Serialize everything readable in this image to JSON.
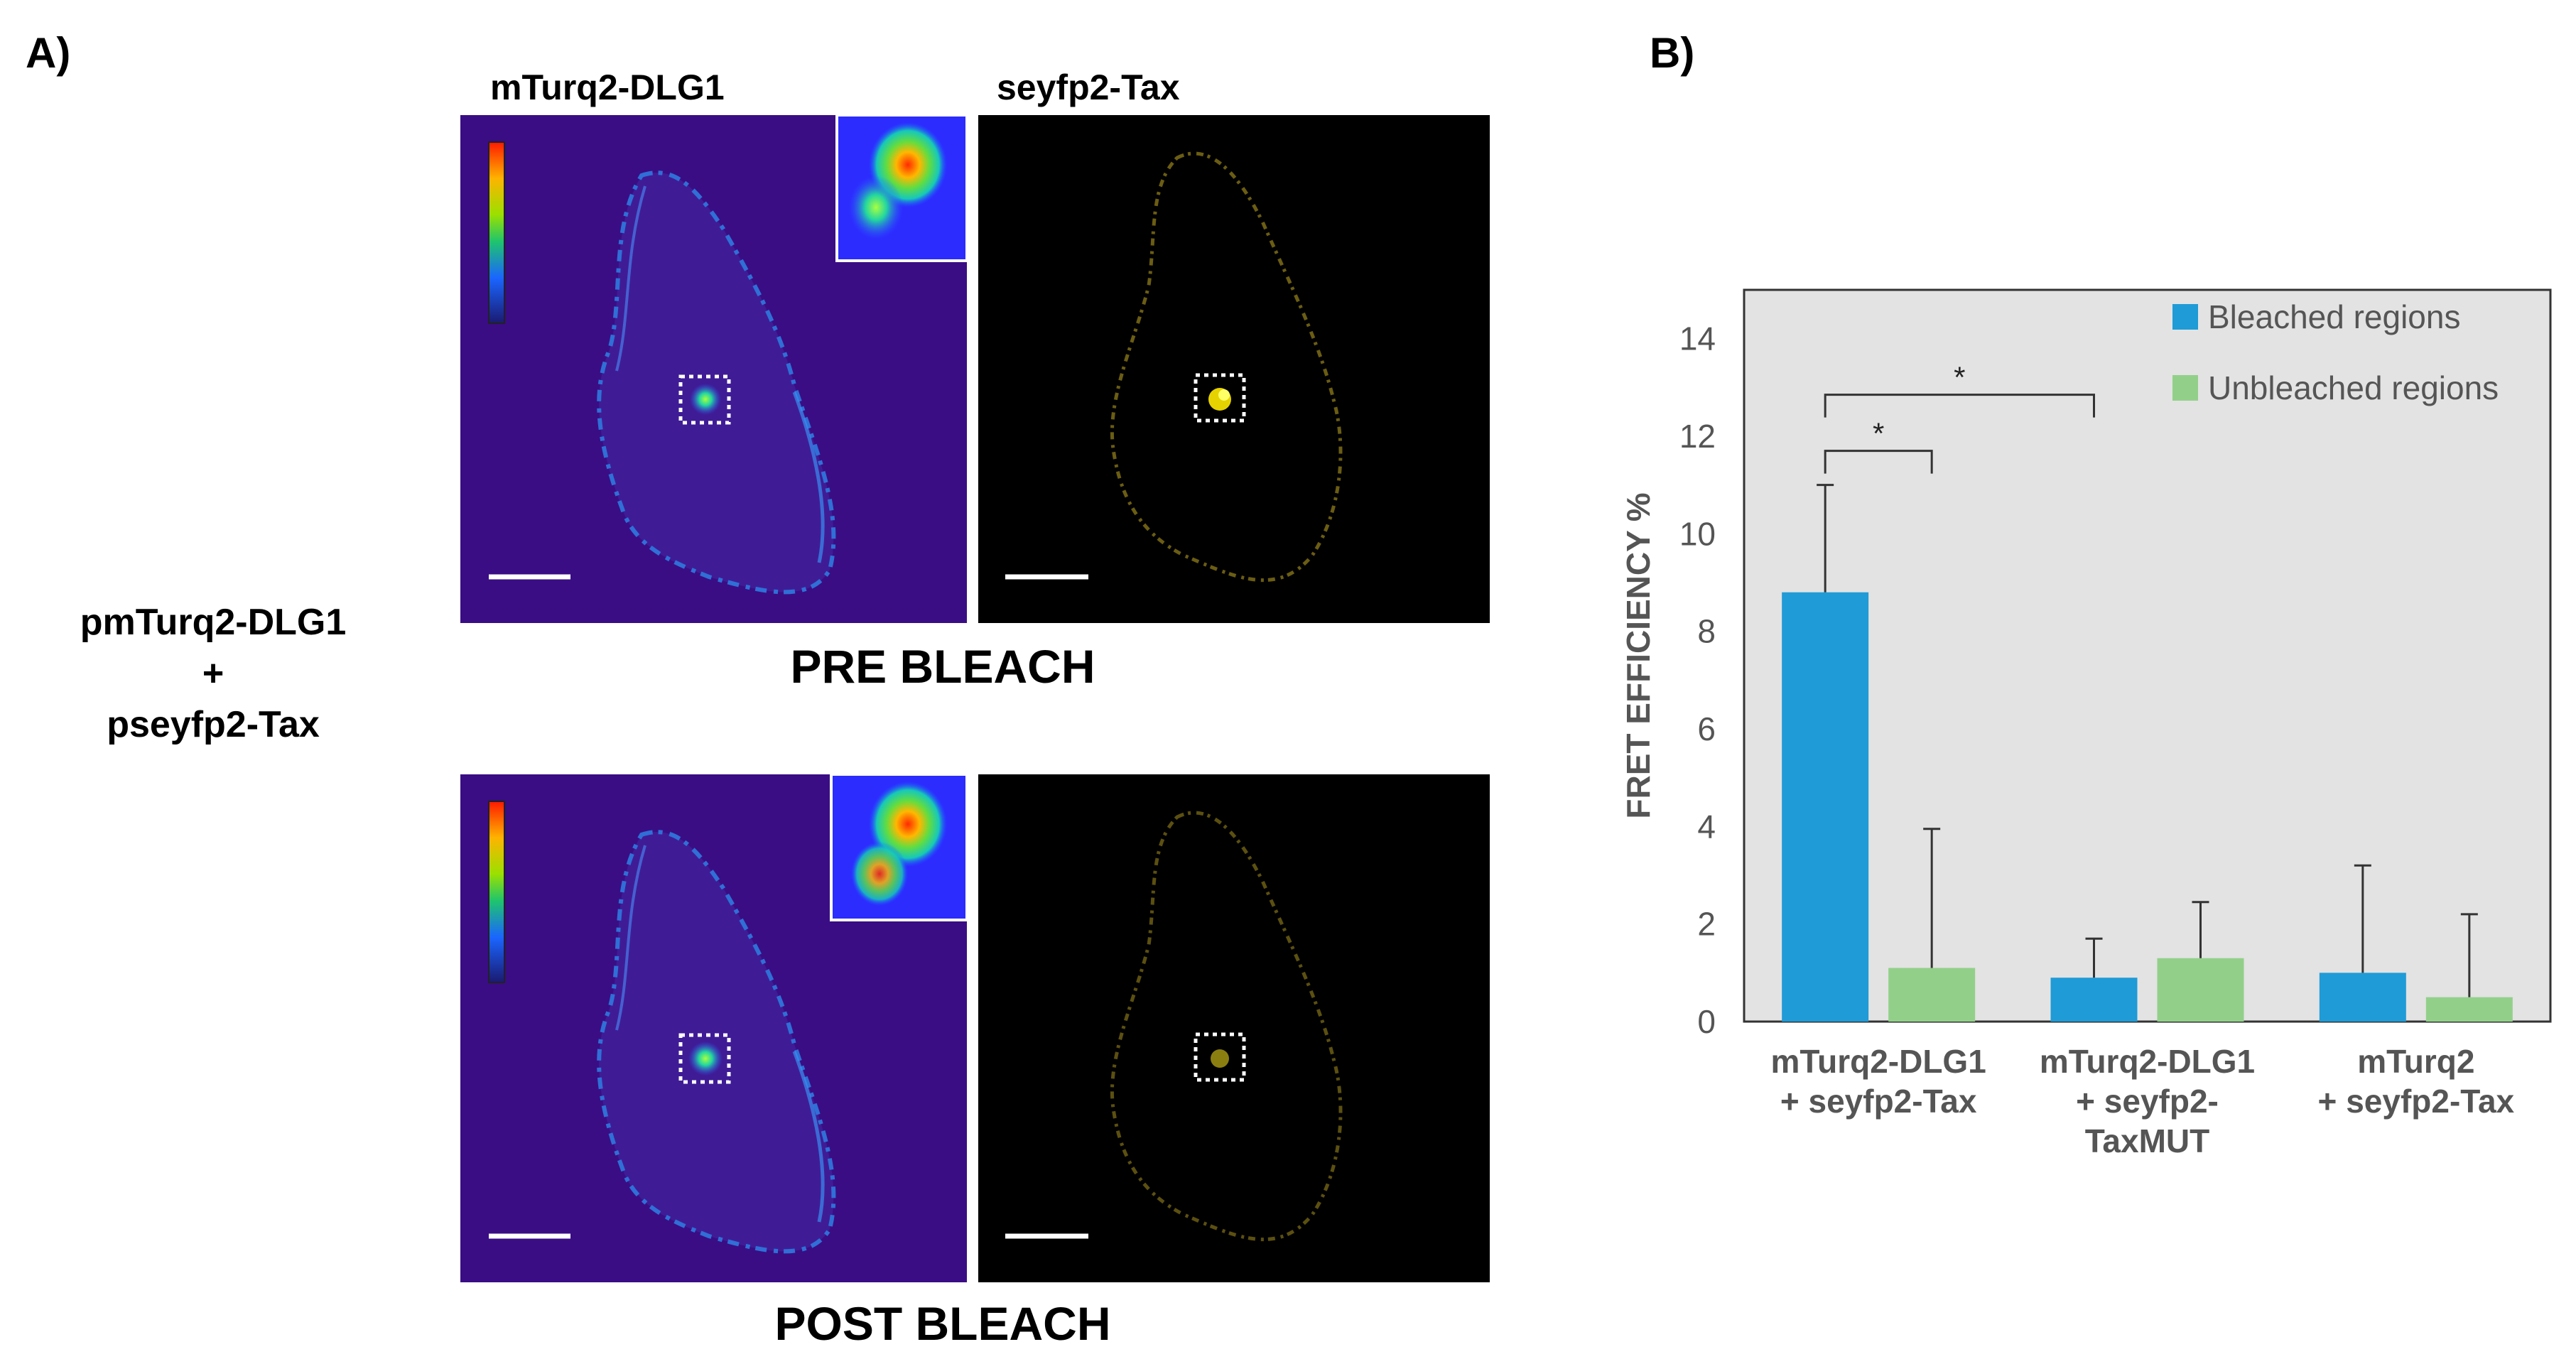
{
  "panel_a": {
    "letter": "A)",
    "condition": {
      "line1": "pmTurq2-DLG1",
      "line2": "+",
      "line3": "pseyfp2-Tax"
    },
    "channels": {
      "donor": "mTurq2-DLG1",
      "acceptor": "seyfp2-Tax"
    },
    "phases": {
      "pre": "PRE BLEACH",
      "post": "POST BLEACH"
    }
  },
  "panel_b": {
    "letter": "B)"
  },
  "colors": {
    "bleached": "#1f9bd7",
    "unbleached": "#92d08a",
    "plot_bg": "#e3e3e3",
    "micro_bg": "#3a0d85"
  },
  "chart_data": {
    "type": "bar",
    "ylabel": "FRET EFFICIENCY %",
    "ylim": [
      0,
      15
    ],
    "yticks": [
      0,
      2,
      4,
      6,
      8,
      10,
      12,
      14
    ],
    "categories": [
      [
        "mTurq2-DLG1",
        "+ seyfp2-Tax"
      ],
      [
        "mTurq2-DLG1",
        "+ seyfp2-",
        "TaxMUT"
      ],
      [
        "mTurq2",
        "+ seyfp2-Tax"
      ]
    ],
    "series": [
      {
        "name": "Bleached regions",
        "color": "#1f9bd7",
        "values": [
          8.8,
          0.9,
          1.0
        ],
        "errors": [
          2.2,
          0.8,
          2.2
        ]
      },
      {
        "name": "Unbleached regions",
        "color": "#92d08a",
        "values": [
          1.1,
          1.3,
          0.5
        ],
        "errors": [
          2.85,
          1.15,
          1.7
        ]
      }
    ],
    "significance": [
      {
        "from": [
          0,
          0
        ],
        "to": [
          0,
          1
        ],
        "label": "*"
      },
      {
        "from": [
          0,
          0
        ],
        "to": [
          1,
          0
        ],
        "label": "*"
      }
    ],
    "legend_position": "top-right"
  }
}
